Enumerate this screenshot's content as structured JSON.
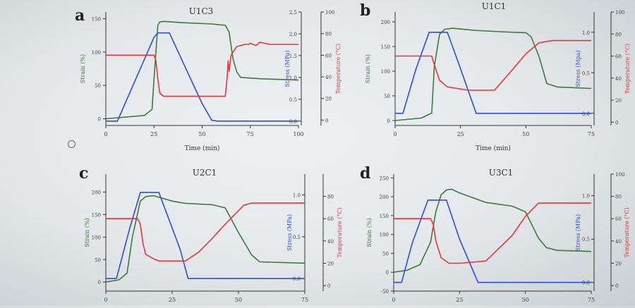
{
  "figure": {
    "colors": {
      "strain": "#3d7a3d",
      "stress": "#2b4fd6",
      "temperature": "#dd3a3a",
      "axis": "#333333"
    }
  },
  "chart_data": [
    {
      "letter": "a",
      "title": "U1C3",
      "type": "line",
      "xlabel": "Time (min)",
      "xlim": [
        0,
        100
      ],
      "xticks": [
        0,
        25,
        50,
        75,
        100
      ],
      "strain": {
        "label": "Strain (%)",
        "lim": [
          -10,
          160
        ],
        "ticks": [
          0,
          50,
          100,
          150
        ],
        "x": [
          0,
          20,
          24,
          25,
          27,
          28,
          30,
          40,
          55,
          62,
          64,
          66,
          68,
          70,
          80,
          90,
          100
        ],
        "y": [
          0,
          5,
          14,
          60,
          140,
          145,
          146,
          144,
          142,
          140,
          130,
          90,
          70,
          62,
          60,
          59,
          58
        ]
      },
      "stress": {
        "label": "Stress (MPa)",
        "lim": [
          -0.1,
          2.5
        ],
        "ticks": [
          0.0,
          0.5,
          1.0,
          1.5,
          2.0,
          2.5
        ],
        "x": [
          0,
          6,
          25,
          27,
          33,
          40,
          50,
          55,
          58,
          100
        ],
        "y": [
          0,
          0,
          1.92,
          2.02,
          2.02,
          1.35,
          0.4,
          0.02,
          0,
          0
        ]
      },
      "temperature": {
        "label": "Temperature (°C)",
        "lim": [
          -5,
          100
        ],
        "ticks": [
          0,
          20,
          40,
          60,
          80,
          100
        ],
        "x": [
          0,
          25,
          26,
          27,
          28,
          30,
          62,
          63,
          63.5,
          64,
          65,
          68,
          72,
          74,
          75,
          78,
          80,
          85,
          100
        ],
        "y": [
          60,
          60,
          55,
          38,
          25,
          22,
          22,
          40,
          55,
          45,
          60,
          68,
          70,
          70,
          71,
          69,
          72,
          70,
          70
        ]
      }
    },
    {
      "letter": "b",
      "title": "U1C1",
      "type": "line",
      "xlabel": "Time (min)",
      "xlim": [
        0,
        75
      ],
      "xticks": [
        0,
        25,
        50,
        75
      ],
      "strain": {
        "label": "Strain (%)",
        "lim": [
          -10,
          220
        ],
        "ticks": [
          0,
          50,
          100,
          150,
          200
        ],
        "x": [
          0,
          10,
          14,
          15,
          17,
          19,
          22,
          30,
          40,
          50,
          52,
          55,
          58,
          62,
          75
        ],
        "y": [
          0,
          5,
          15,
          110,
          175,
          185,
          187,
          183,
          180,
          178,
          170,
          130,
          75,
          68,
          65
        ],
        "lineWidthFactor": 1
      },
      "stress": {
        "label": "Stress (Mpa)",
        "lim": [
          -0.15,
          1.25
        ],
        "ticks": [
          0.0,
          0.5,
          1.0
        ],
        "x": [
          0,
          3,
          8,
          13,
          20,
          25,
          31,
          75
        ],
        "y": [
          0,
          0,
          0.55,
          1.0,
          1.0,
          0.55,
          0,
          0
        ]
      },
      "temperature": {
        "label": "Temperature (°C)",
        "lim": [
          -3,
          100
        ],
        "ticks": [
          0,
          20,
          40,
          60,
          80,
          100
        ],
        "x": [
          0,
          14,
          15,
          17,
          20,
          28,
          38,
          45,
          50,
          53,
          55,
          60,
          75
        ],
        "y": [
          60,
          60,
          52,
          38,
          32,
          29,
          29,
          48,
          62,
          68,
          72,
          74,
          74
        ]
      }
    },
    {
      "letter": "c",
      "title": "U2C1",
      "type": "line",
      "xlabel": "",
      "xlim": [
        0,
        75
      ],
      "xticks": [
        0,
        25,
        50,
        75
      ],
      "strain": {
        "label": "Strain (%)",
        "lim": [
          -20,
          240
        ],
        "ticks": [
          0,
          50,
          100,
          150,
          200
        ],
        "x": [
          0,
          5,
          8,
          10,
          13,
          15,
          18,
          25,
          30,
          40,
          45,
          50,
          55,
          58,
          75
        ],
        "y": [
          0,
          5,
          20,
          100,
          180,
          190,
          192,
          180,
          175,
          172,
          165,
          110,
          60,
          45,
          42
        ]
      },
      "stress": {
        "label": "Stress (MPa)",
        "lim": [
          -0.15,
          1.25
        ],
        "ticks": [
          0.0,
          0.5,
          1.0
        ],
        "x": [
          0,
          4,
          9,
          13,
          20,
          28,
          31,
          75
        ],
        "y": [
          0,
          0,
          0.6,
          1.03,
          1.03,
          0.35,
          0,
          0
        ]
      },
      "temperature": {
        "label": "Temperature (°C)",
        "lim": [
          -5,
          100
        ],
        "ticks": [
          0,
          20,
          40,
          60,
          80
        ],
        "x": [
          0,
          12,
          13,
          14,
          15,
          18,
          20,
          25,
          30,
          35,
          40,
          45,
          52,
          55,
          75
        ],
        "y": [
          60,
          60,
          55,
          38,
          28,
          24,
          22,
          22,
          22,
          30,
          42,
          55,
          72,
          74,
          74
        ]
      }
    },
    {
      "letter": "d",
      "title": "U3C1",
      "type": "line",
      "xlabel": "",
      "xlim": [
        0,
        75
      ],
      "xticks": [
        0,
        25,
        50,
        75
      ],
      "strain": {
        "label": "Strain (%)",
        "lim": [
          -50,
          260
        ],
        "ticks": [
          -50,
          0,
          50,
          100,
          150,
          200,
          250
        ],
        "x": [
          0,
          5,
          10,
          14,
          16,
          18,
          20,
          22,
          25,
          35,
          45,
          50,
          55,
          58,
          62,
          75
        ],
        "y": [
          0,
          5,
          20,
          80,
          160,
          205,
          218,
          220,
          210,
          185,
          175,
          160,
          90,
          65,
          58,
          55
        ]
      },
      "stress": {
        "label": "Stress (MPa)",
        "lim": [
          -0.1,
          1.25
        ],
        "ticks": [
          0.0,
          0.5,
          1.0
        ],
        "x": [
          0,
          3,
          7,
          13,
          20,
          25,
          32,
          40,
          75
        ],
        "y": [
          0,
          0,
          0.45,
          0.95,
          0.95,
          0.5,
          0,
          0,
          0
        ]
      },
      "temperature": {
        "label": "Temperature (°C)",
        "lim": [
          -5,
          100
        ],
        "ticks": [
          0,
          20,
          40,
          60,
          80,
          100
        ],
        "x": [
          0,
          14,
          15,
          16,
          18,
          21,
          25,
          35,
          45,
          50,
          55,
          75
        ],
        "y": [
          60,
          60,
          55,
          40,
          25,
          20,
          20,
          22,
          45,
          62,
          74,
          74
        ]
      }
    }
  ],
  "panels_layout": []
}
